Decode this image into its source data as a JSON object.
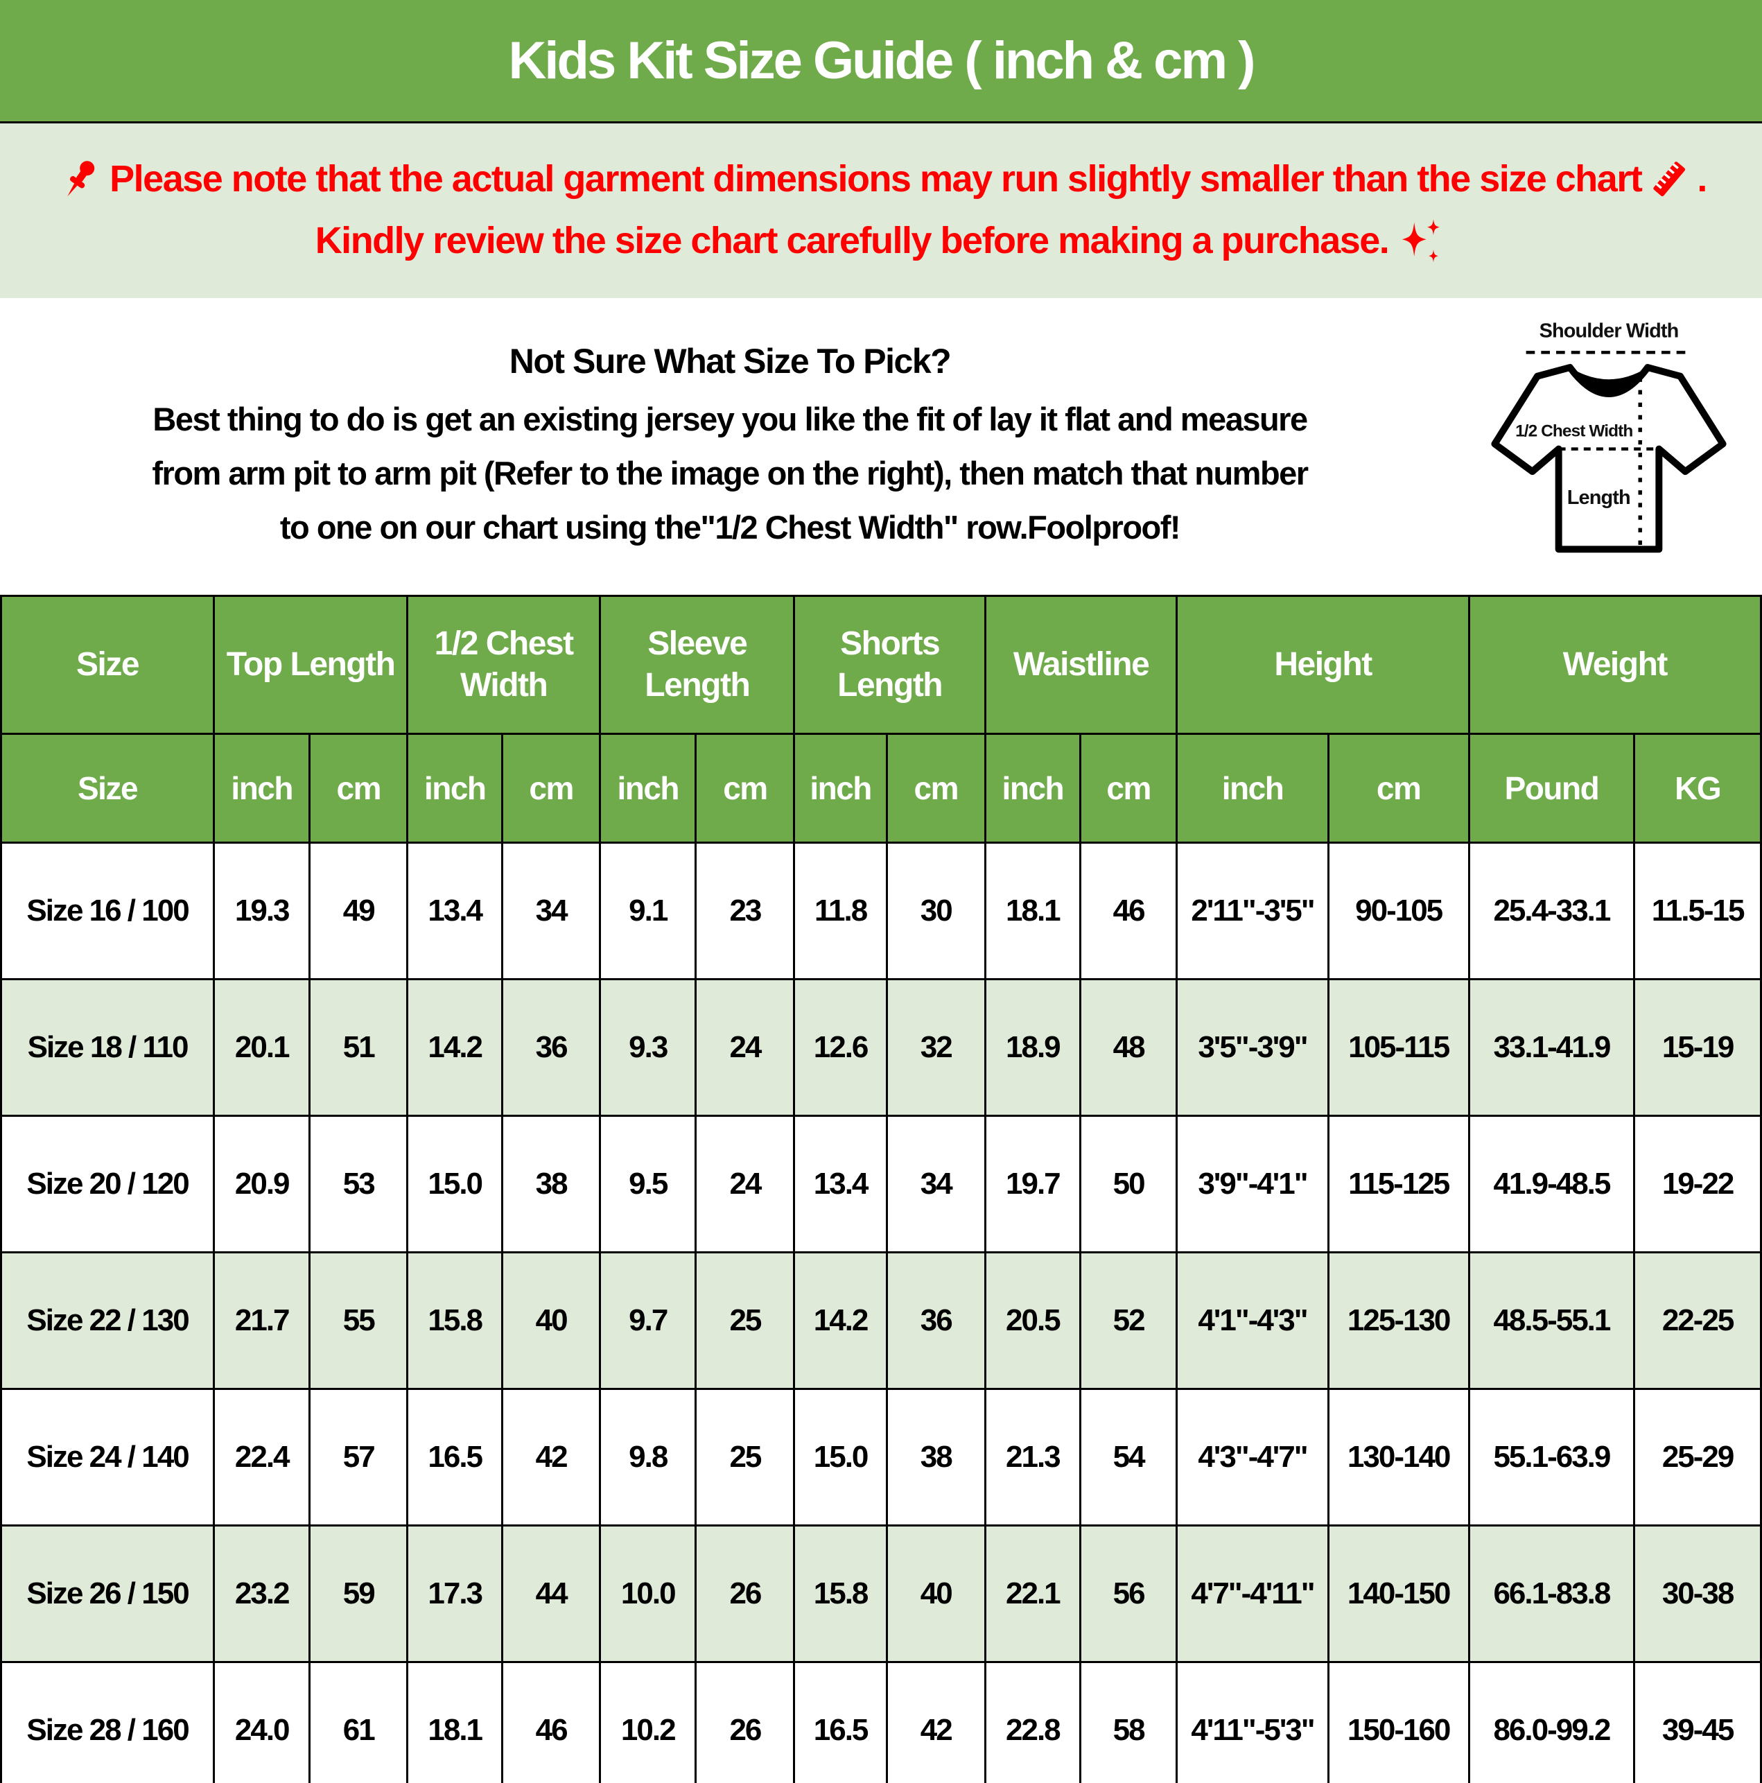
{
  "header": {
    "title": "Kids Kit Size Guide ( inch & cm )"
  },
  "notice": {
    "line1_text": "Please note that the actual garment dimensions may run slightly smaller than the size chart",
    "line1_suffix": ".",
    "line2_text": "Kindly review the size chart carefully before making a purchase."
  },
  "icons": {
    "pushpin": "pushpin-icon",
    "ruler": "ruler-icon",
    "sparkles": "sparkles-icon"
  },
  "info": {
    "heading": "Not Sure What Size To Pick?",
    "line1": "Best thing to do is get an existing jersey you like the fit of lay it flat and measure",
    "line2": "from arm pit to arm pit (Refer to the image on the right), then match that number",
    "line3": "to one on our chart using the\"1/2 Chest Width\" row.Foolproof!"
  },
  "diagram": {
    "shoulder_width": "Shoulder Width",
    "half_chest_width": "1/2 Chest Width",
    "length": "Length"
  },
  "colors": {
    "accent_green": "#6faa4b",
    "light_green": "#dfead8",
    "note_red": "#ff0000"
  },
  "table": {
    "groups": [
      {
        "label": "Size",
        "span": 1
      },
      {
        "label": "Top Length",
        "span": 2
      },
      {
        "label": "1/2 Chest Width",
        "span": 2
      },
      {
        "label": "Sleeve Length",
        "span": 2
      },
      {
        "label": "Shorts Length",
        "span": 2
      },
      {
        "label": "Waistline",
        "span": 2
      },
      {
        "label": "Height",
        "span": 2
      },
      {
        "label": "Weight",
        "span": 2
      }
    ],
    "subheaders": [
      "Size",
      "inch",
      "cm",
      "inch",
      "cm",
      "inch",
      "cm",
      "inch",
      "cm",
      "inch",
      "cm",
      "inch",
      "cm",
      "Pound",
      "KG"
    ],
    "rows": [
      [
        "Size 16 / 100",
        "19.3",
        "49",
        "13.4",
        "34",
        "9.1",
        "23",
        "11.8",
        "30",
        "18.1",
        "46",
        "2'11\"-3'5\"",
        "90-105",
        "25.4-33.1",
        "11.5-15"
      ],
      [
        "Size 18 / 110",
        "20.1",
        "51",
        "14.2",
        "36",
        "9.3",
        "24",
        "12.6",
        "32",
        "18.9",
        "48",
        "3'5\"-3'9\"",
        "105-115",
        "33.1-41.9",
        "15-19"
      ],
      [
        "Size 20 / 120",
        "20.9",
        "53",
        "15.0",
        "38",
        "9.5",
        "24",
        "13.4",
        "34",
        "19.7",
        "50",
        "3'9\"-4'1\"",
        "115-125",
        "41.9-48.5",
        "19-22"
      ],
      [
        "Size 22 / 130",
        "21.7",
        "55",
        "15.8",
        "40",
        "9.7",
        "25",
        "14.2",
        "36",
        "20.5",
        "52",
        "4'1\"-4'3\"",
        "125-130",
        "48.5-55.1",
        "22-25"
      ],
      [
        "Size 24 / 140",
        "22.4",
        "57",
        "16.5",
        "42",
        "9.8",
        "25",
        "15.0",
        "38",
        "21.3",
        "54",
        "4'3\"-4'7\"",
        "130-140",
        "55.1-63.9",
        "25-29"
      ],
      [
        "Size 26 / 150",
        "23.2",
        "59",
        "17.3",
        "44",
        "10.0",
        "26",
        "15.8",
        "40",
        "22.1",
        "56",
        "4'7\"-4'11\"",
        "140-150",
        "66.1-83.8",
        "30-38"
      ],
      [
        "Size 28 / 160",
        "24.0",
        "61",
        "18.1",
        "46",
        "10.2",
        "26",
        "16.5",
        "42",
        "22.8",
        "58",
        "4'11\"-5'3\"",
        "150-160",
        "86.0-99.2",
        "39-45"
      ]
    ]
  }
}
